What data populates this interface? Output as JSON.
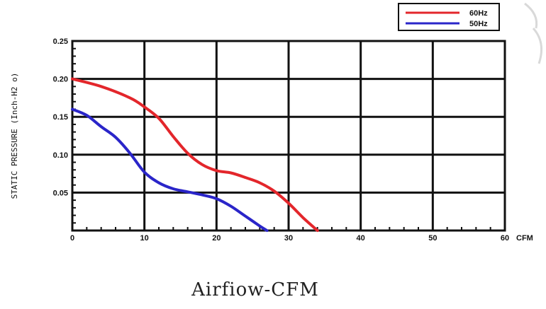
{
  "caption": "Airfiow-CFM",
  "chart_data": {
    "type": "line",
    "xlabel": "CFM",
    "ylabel": "STATIC PRESSURE (Inch-H2 o)",
    "xlim": [
      0,
      60
    ],
    "ylim": [
      0,
      0.25
    ],
    "x_ticks": [
      "0",
      "10",
      "20",
      "30",
      "40",
      "50",
      "60"
    ],
    "y_ticks": [
      "0.05",
      "0.10",
      "0.15",
      "0.20",
      "0.25"
    ],
    "grid": true,
    "legend_position": "top-right",
    "series": [
      {
        "name": "60Hz",
        "color": "#e3262b",
        "x": [
          0,
          4,
          8,
          10,
          12,
          14,
          16,
          18,
          20,
          22,
          24,
          26,
          28,
          30,
          32,
          34
        ],
        "y": [
          0.2,
          0.19,
          0.175,
          0.163,
          0.148,
          0.124,
          0.102,
          0.087,
          0.079,
          0.076,
          0.07,
          0.063,
          0.052,
          0.036,
          0.017,
          0.0
        ]
      },
      {
        "name": "50Hz",
        "color": "#2a25c9",
        "x": [
          0,
          2,
          4,
          6,
          8,
          10,
          12,
          14,
          16,
          18,
          20,
          22,
          24,
          26,
          27
        ],
        "y": [
          0.16,
          0.152,
          0.137,
          0.123,
          0.102,
          0.077,
          0.063,
          0.055,
          0.051,
          0.047,
          0.042,
          0.032,
          0.019,
          0.006,
          0.0
        ]
      }
    ]
  }
}
